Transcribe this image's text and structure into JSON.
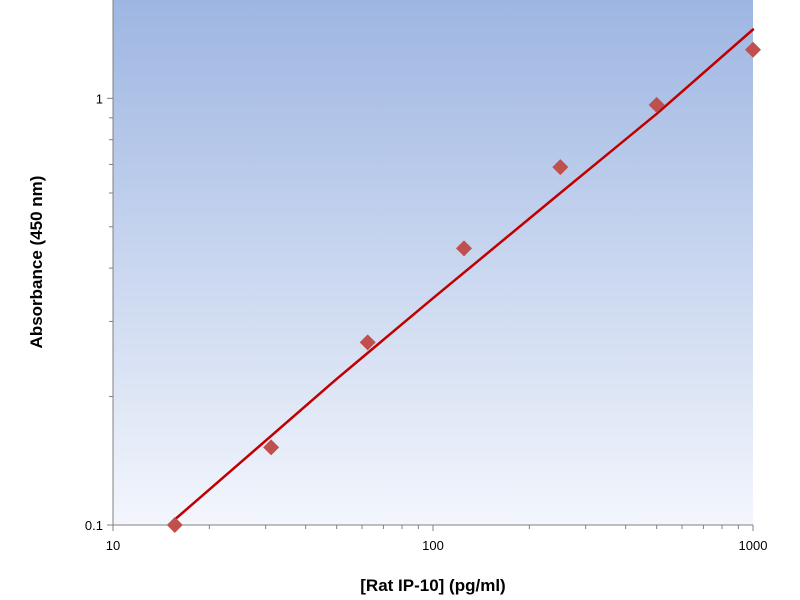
{
  "chart_data": {
    "type": "scatter",
    "title": "",
    "xlabel": "[Rat IP-10] (pg/ml)",
    "ylabel": "Absorbance (450 nm)",
    "xscale": "log",
    "yscale": "log",
    "xlim": [
      10,
      1000
    ],
    "ylim": [
      0.1,
      1.7
    ],
    "x_ticks": [
      {
        "value": 10,
        "label": "10"
      },
      {
        "value": 100,
        "label": "100"
      },
      {
        "value": 1000,
        "label": "1000"
      }
    ],
    "y_ticks": [
      {
        "value": 0.1,
        "label": "0.1"
      },
      {
        "value": 1,
        "label": "1"
      }
    ],
    "grid": false,
    "legend": "none",
    "series": [
      {
        "kind": "points",
        "marker": "diamond",
        "color": "#c0504d",
        "x": [
          15.6,
          31.2,
          62.5,
          125,
          250,
          500,
          1000
        ],
        "y": [
          0.1,
          0.152,
          0.268,
          0.445,
          0.69,
          0.965,
          1.3
        ]
      },
      {
        "kind": "fit-line",
        "color": "#c00000",
        "x": [
          15.6,
          25,
          50,
          100,
          250,
          500,
          1000
        ],
        "y": [
          0.103,
          0.14,
          0.22,
          0.34,
          0.6,
          0.92,
          1.45
        ]
      }
    ]
  },
  "colors": {
    "plot_background_top": "#9eb6e2",
    "plot_background_bottom": "#f3f6fc",
    "axis": "#808080",
    "marker": "#c0504d",
    "fit_line": "#c00000"
  }
}
